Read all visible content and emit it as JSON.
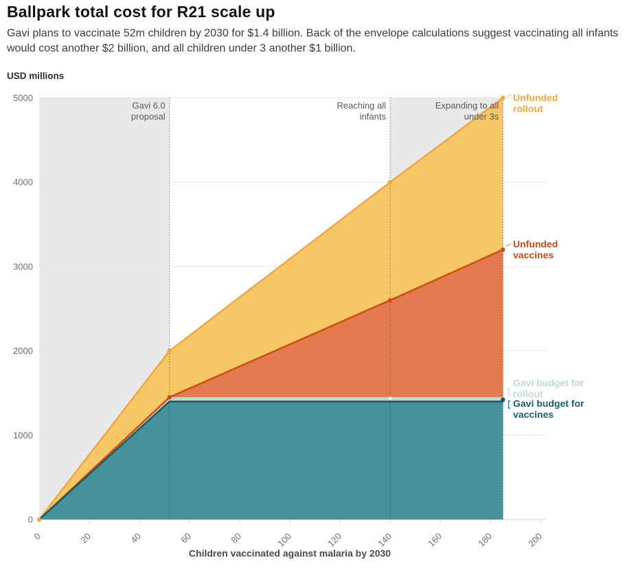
{
  "header": {
    "title": "Ballpark total cost for R21 scale up",
    "subtitle": "Gavi plans to vaccinate 52m children by 2030 for $1.4 billion. Back of the envelope calculations suggest vaccinating all infants would cost another $2 billion, and all children under 3 another $1 billion."
  },
  "chart_data": {
    "type": "area",
    "title": "Ballpark total cost for R21 scale up",
    "xlabel": "Children vaccinated against malaria by 2030",
    "ylabel": "USD millions",
    "xlim": [
      0,
      200
    ],
    "ylim": [
      0,
      5000
    ],
    "x_ticks": [
      0,
      20,
      40,
      60,
      80,
      100,
      120,
      140,
      160,
      180,
      200
    ],
    "y_ticks": [
      0,
      1000,
      2000,
      3000,
      4000,
      5000
    ],
    "grid": true,
    "legend_position": "right-edge-labels",
    "shaded_x_bands": [
      [
        0,
        52
      ],
      [
        140,
        185
      ]
    ],
    "band_color": "#E9E9E9",
    "vertical_rules": [
      {
        "x": 52,
        "label": "Gavi 6.0 proposal",
        "label_lines": [
          "Gavi 6.0",
          "proposal"
        ]
      },
      {
        "x": 140,
        "label": "Reaching all infants",
        "label_lines": [
          "Reaching all",
          "infants"
        ]
      },
      {
        "x": 185,
        "label": "Expanding to all under 3s",
        "label_lines": [
          "Expanding to all",
          "under 3s"
        ]
      }
    ],
    "series": [
      {
        "name": "Unfunded rollout",
        "label_lines": [
          "Unfunded",
          "rollout"
        ],
        "x": [
          0,
          52,
          140,
          185
        ],
        "y": [
          0,
          2000,
          4000,
          5000
        ],
        "fill": "#F6C767",
        "stroke": "#F0A73E",
        "label_color": "#EFA93C",
        "markers": [
          [
            0,
            0
          ],
          [
            52,
            2000
          ],
          [
            140,
            4000
          ],
          [
            185,
            5000
          ]
        ]
      },
      {
        "name": "Unfunded vaccines",
        "label_lines": [
          "Unfunded",
          "vaccines"
        ],
        "x": [
          0,
          52,
          140,
          185
        ],
        "y": [
          0,
          1450,
          2600,
          3200
        ],
        "fill": "#E47A50",
        "stroke": "#D14B12",
        "label_color": "#CB4A10",
        "markers": [
          [
            52,
            1450
          ],
          [
            140,
            2600
          ],
          [
            185,
            3200
          ]
        ]
      },
      {
        "name": "Gavi budget for rollout",
        "label_lines": [
          "Gavi budget for",
          "rollout"
        ],
        "x": [
          0,
          52,
          185
        ],
        "y": [
          0,
          1450,
          1450
        ],
        "fill": "#C6D4D1",
        "stroke": "none",
        "marker_color": "#E3ECEA",
        "label_color": "#BFD8DC",
        "markers": [
          [
            140,
            1437
          ]
        ]
      },
      {
        "name": "Gavi budget for vaccines",
        "label_lines": [
          "Gavi budget for",
          "vaccines"
        ],
        "x": [
          0,
          52,
          185
        ],
        "y": [
          0,
          1400,
          1400
        ],
        "fill": "#47919A",
        "stroke": "#155E68",
        "label_color": "#17606C",
        "markers": [
          [
            185,
            1422
          ]
        ]
      }
    ]
  }
}
